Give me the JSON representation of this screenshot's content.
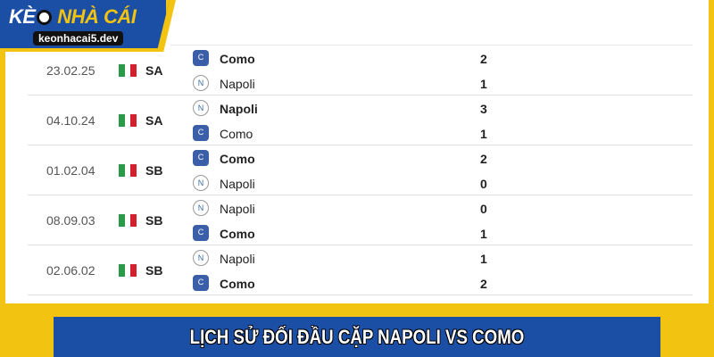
{
  "logo": {
    "brand_part1": "KÈ",
    "brand_part2": "O",
    "brand_part3": "NHÀ CÁI",
    "domain": "keonhacai5.dev"
  },
  "matches": [
    {
      "date": "23.02.25",
      "league": "SA",
      "teams": [
        {
          "name": "Como",
          "icon": "como-crest",
          "score": "2",
          "winner": true
        },
        {
          "name": "Napoli",
          "icon": "napoli-crest",
          "score": "1",
          "winner": false
        }
      ]
    },
    {
      "date": "04.10.24",
      "league": "SA",
      "teams": [
        {
          "name": "Napoli",
          "icon": "napoli-crest",
          "score": "3",
          "winner": true
        },
        {
          "name": "Como",
          "icon": "como-crest",
          "score": "1",
          "winner": false
        }
      ]
    },
    {
      "date": "01.02.04",
      "league": "SB",
      "teams": [
        {
          "name": "Como",
          "icon": "como-crest",
          "score": "2",
          "winner": true
        },
        {
          "name": "Napoli",
          "icon": "napoli-crest",
          "score": "0",
          "winner": false
        }
      ]
    },
    {
      "date": "08.09.03",
      "league": "SB",
      "teams": [
        {
          "name": "Napoli",
          "icon": "napoli-crest",
          "score": "0",
          "winner": false
        },
        {
          "name": "Como",
          "icon": "como-crest",
          "score": "1",
          "winner": true
        }
      ]
    },
    {
      "date": "02.06.02",
      "league": "SB",
      "teams": [
        {
          "name": "Napoli",
          "icon": "napoli-crest",
          "score": "1",
          "winner": false
        },
        {
          "name": "Como",
          "icon": "como-crest",
          "score": "2",
          "winner": true
        }
      ]
    }
  ],
  "flag_colors": [
    "#2a9a48",
    "#ffffff",
    "#d4202e"
  ],
  "banner": {
    "title": "LỊCH SỬ ĐỐI ĐẦU CẶP NAPOLI VS COMO"
  }
}
